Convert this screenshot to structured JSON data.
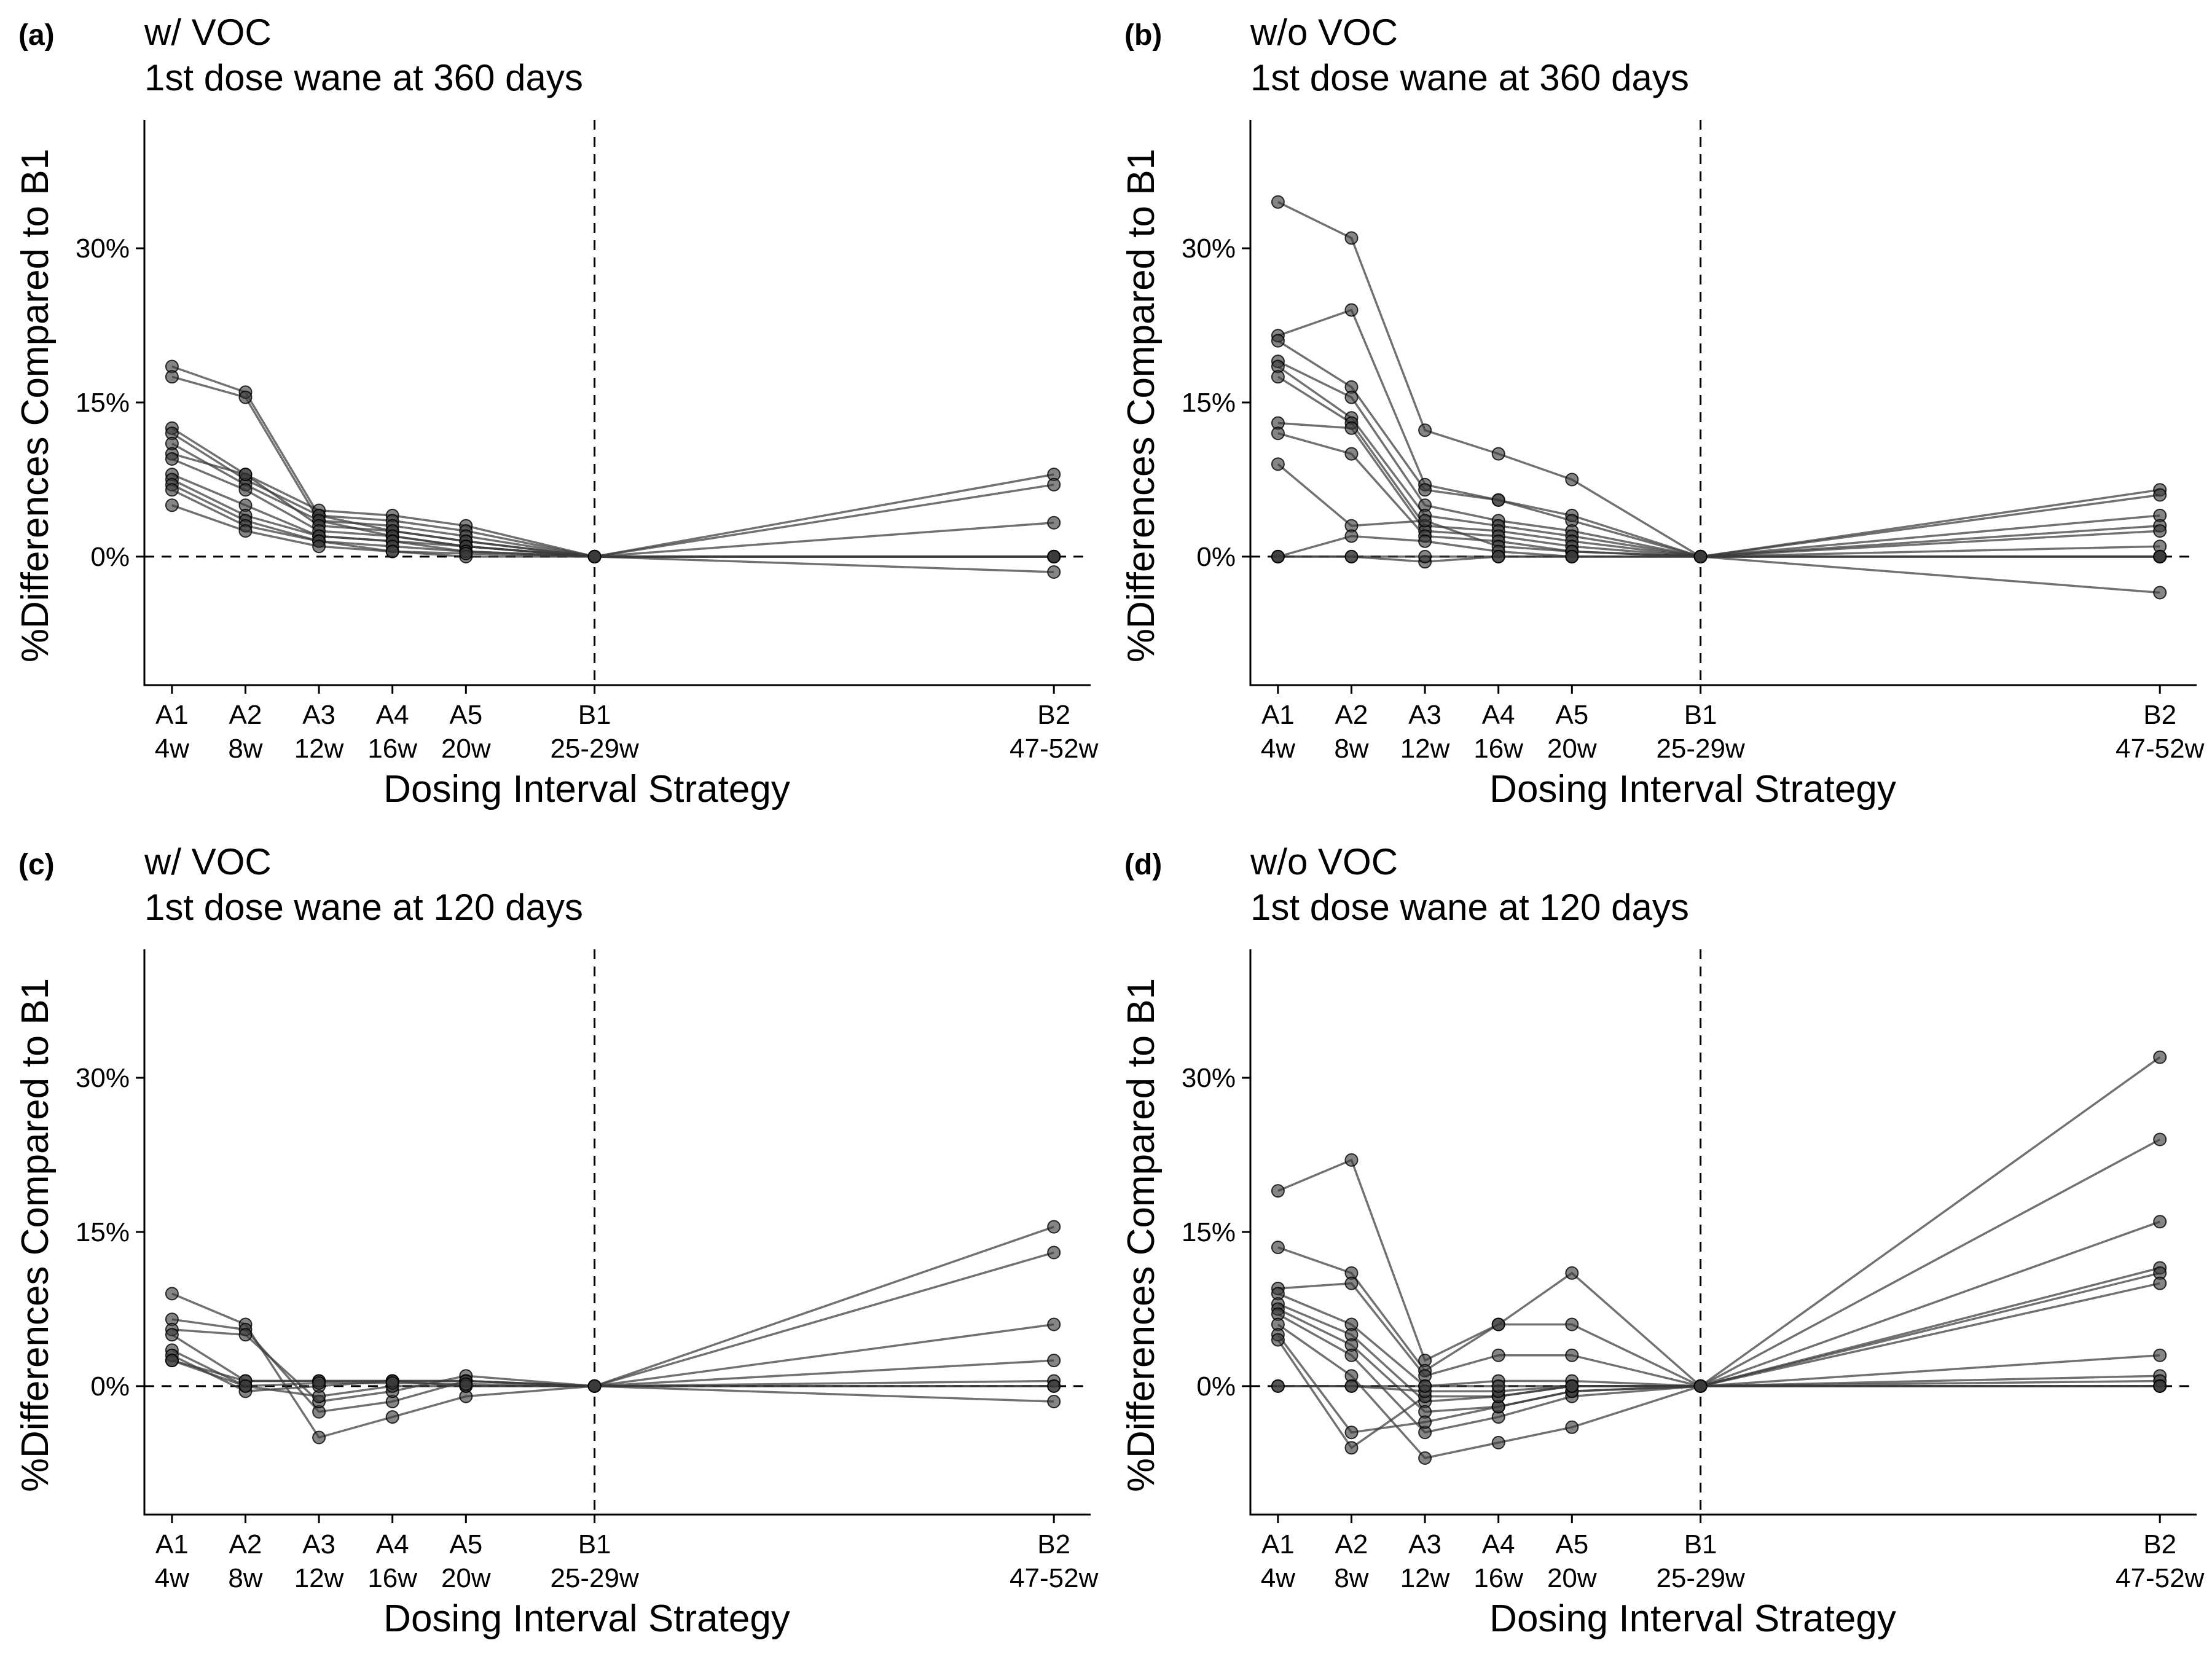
{
  "chart_data": [
    {
      "type": "line",
      "tag": "(a)",
      "title_line1": "w/ VOC",
      "title_line2": "1st dose wane at 360 days",
      "xlabel": "Dosing Interval Strategy",
      "ylabel": "%Differences Compared to B1",
      "categories": [
        {
          "code": "A1",
          "interval": "4w",
          "week": 4
        },
        {
          "code": "A2",
          "interval": "8w",
          "week": 8
        },
        {
          "code": "A3",
          "interval": "12w",
          "week": 12
        },
        {
          "code": "A4",
          "interval": "16w",
          "week": 16
        },
        {
          "code": "A5",
          "interval": "20w",
          "week": 20
        },
        {
          "code": "B1",
          "interval": "25-29w",
          "week": 27
        },
        {
          "code": "B2",
          "interval": "47-52w",
          "week": 52
        }
      ],
      "yticks": [
        "0%",
        "15%",
        "30%"
      ],
      "ytick_values": [
        0,
        15,
        30
      ],
      "ylim": [
        -12.5,
        42.5
      ],
      "series": [
        {
          "values": [
            18.5,
            16.0,
            4.0,
            2.5,
            1.5,
            0,
            0
          ]
        },
        {
          "values": [
            17.5,
            15.5,
            3.5,
            2.0,
            1.0,
            0,
            0
          ]
        },
        {
          "values": [
            12.5,
            8.0,
            4.5,
            4.0,
            3.0,
            0,
            0
          ]
        },
        {
          "values": [
            12.0,
            7.5,
            4.0,
            3.5,
            2.5,
            0,
            8.0
          ]
        },
        {
          "values": [
            11.0,
            7.0,
            3.5,
            3.0,
            2.0,
            0,
            7.0
          ]
        },
        {
          "values": [
            10.0,
            8.0,
            3.0,
            2.5,
            1.5,
            0,
            3.3
          ]
        },
        {
          "values": [
            9.5,
            6.5,
            2.5,
            2.0,
            1.0,
            0,
            0
          ]
        },
        {
          "values": [
            8.0,
            5.0,
            2.0,
            1.5,
            1.0,
            0,
            0
          ]
        },
        {
          "values": [
            7.5,
            4.0,
            2.0,
            1.5,
            0.5,
            0,
            -1.5
          ]
        },
        {
          "values": [
            7.0,
            3.5,
            1.5,
            1.0,
            0.5,
            0,
            0
          ]
        },
        {
          "values": [
            6.5,
            3.0,
            1.5,
            0.5,
            0.0,
            0,
            0
          ]
        },
        {
          "values": [
            5.0,
            2.5,
            1.0,
            0.5,
            0.3,
            0,
            0
          ]
        }
      ]
    },
    {
      "type": "line",
      "tag": "(b)",
      "title_line1": "w/o VOC",
      "title_line2": "1st dose wane at 360 days",
      "xlabel": "Dosing Interval Strategy",
      "ylabel": "%Differences Compared to B1",
      "categories": [
        {
          "code": "A1",
          "interval": "4w",
          "week": 4
        },
        {
          "code": "A2",
          "interval": "8w",
          "week": 8
        },
        {
          "code": "A3",
          "interval": "12w",
          "week": 12
        },
        {
          "code": "A4",
          "interval": "16w",
          "week": 16
        },
        {
          "code": "A5",
          "interval": "20w",
          "week": 20
        },
        {
          "code": "B1",
          "interval": "25-29w",
          "week": 27
        },
        {
          "code": "B2",
          "interval": "47-52w",
          "week": 52
        }
      ],
      "yticks": [
        "0%",
        "15%",
        "30%"
      ],
      "ytick_values": [
        0,
        15,
        30
      ],
      "ylim": [
        -12.5,
        42.5
      ],
      "series": [
        {
          "values": [
            34.5,
            31.0,
            12.3,
            10.0,
            7.5,
            0,
            6.5
          ]
        },
        {
          "values": [
            21.5,
            24.0,
            7.0,
            5.5,
            4.0,
            0,
            6.0
          ]
        },
        {
          "values": [
            21.0,
            16.5,
            6.5,
            5.5,
            3.5,
            0,
            4.0
          ]
        },
        {
          "values": [
            19.0,
            15.5,
            5.0,
            3.5,
            2.5,
            0,
            3.0
          ]
        },
        {
          "values": [
            18.5,
            13.5,
            4.0,
            3.0,
            2.0,
            0,
            2.5
          ]
        },
        {
          "values": [
            17.5,
            13.0,
            3.0,
            2.5,
            1.5,
            0,
            1.0
          ]
        },
        {
          "values": [
            13.0,
            12.5,
            2.5,
            2.0,
            1.0,
            0,
            0
          ]
        },
        {
          "values": [
            12.0,
            10.0,
            2.0,
            1.5,
            0.5,
            0,
            0
          ]
        },
        {
          "values": [
            9.0,
            3.0,
            3.5,
            1.0,
            0.5,
            0,
            -3.5
          ]
        },
        {
          "values": [
            0,
            2.0,
            1.5,
            0.5,
            0.0,
            0,
            0
          ]
        },
        {
          "values": [
            0,
            0,
            -0.5,
            0,
            0,
            0,
            0
          ]
        },
        {
          "values": [
            0,
            0,
            0,
            0,
            0,
            0,
            0
          ]
        }
      ]
    },
    {
      "type": "line",
      "tag": "(c)",
      "title_line1": "w/ VOC",
      "title_line2": "1st dose wane at 120 days",
      "xlabel": "Dosing Interval Strategy",
      "ylabel": "%Differences Compared to B1",
      "categories": [
        {
          "code": "A1",
          "interval": "4w",
          "week": 4
        },
        {
          "code": "A2",
          "interval": "8w",
          "week": 8
        },
        {
          "code": "A3",
          "interval": "12w",
          "week": 12
        },
        {
          "code": "A4",
          "interval": "16w",
          "week": 16
        },
        {
          "code": "A5",
          "interval": "20w",
          "week": 20
        },
        {
          "code": "B1",
          "interval": "25-29w",
          "week": 27
        },
        {
          "code": "B2",
          "interval": "47-52w",
          "week": 52
        }
      ],
      "yticks": [
        "0%",
        "15%",
        "30%"
      ],
      "ytick_values": [
        0,
        15,
        30
      ],
      "ylim": [
        -12.5,
        42.5
      ],
      "series": [
        {
          "values": [
            9.0,
            6.0,
            -5.0,
            -3.0,
            -1.0,
            0,
            15.5
          ]
        },
        {
          "values": [
            6.5,
            5.5,
            -2.5,
            -1.5,
            0.5,
            0,
            13.0
          ]
        },
        {
          "values": [
            5.5,
            5.0,
            -1.5,
            -0.5,
            1.0,
            0,
            6.0
          ]
        },
        {
          "values": [
            5.0,
            0.5,
            0.5,
            0.5,
            0.5,
            0,
            2.5
          ]
        },
        {
          "values": [
            3.5,
            0.0,
            -1.0,
            0.0,
            0.0,
            0,
            0.5
          ]
        },
        {
          "values": [
            3.0,
            -0.5,
            0.0,
            0.5,
            0.5,
            0,
            0
          ]
        },
        {
          "values": [
            2.5,
            0.5,
            0.5,
            0.5,
            0.0,
            0,
            -1.5
          ]
        },
        {
          "values": [
            2.5,
            0.0,
            0.3,
            0.3,
            0.2,
            0,
            0
          ]
        }
      ]
    },
    {
      "type": "line",
      "tag": "(d)",
      "title_line1": "w/o VOC",
      "title_line2": "1st dose wane at 120 days",
      "xlabel": "Dosing Interval Strategy",
      "ylabel": "%Differences Compared to B1",
      "categories": [
        {
          "code": "A1",
          "interval": "4w",
          "week": 4
        },
        {
          "code": "A2",
          "interval": "8w",
          "week": 8
        },
        {
          "code": "A3",
          "interval": "12w",
          "week": 12
        },
        {
          "code": "A4",
          "interval": "16w",
          "week": 16
        },
        {
          "code": "A5",
          "interval": "20w",
          "week": 20
        },
        {
          "code": "B1",
          "interval": "25-29w",
          "week": 27
        },
        {
          "code": "B2",
          "interval": "47-52w",
          "week": 52
        }
      ],
      "yticks": [
        "0%",
        "15%",
        "30%"
      ],
      "ytick_values": [
        0,
        15,
        30
      ],
      "ylim": [
        -12.5,
        42.5
      ],
      "series": [
        {
          "values": [
            19.0,
            22.0,
            2.5,
            6.0,
            11.0,
            0,
            32.0
          ]
        },
        {
          "values": [
            13.5,
            11.0,
            1.5,
            6.0,
            6.0,
            0,
            24.0
          ]
        },
        {
          "values": [
            9.5,
            10.0,
            1.0,
            3.0,
            3.0,
            0,
            16.0
          ]
        },
        {
          "values": [
            9.0,
            6.0,
            0.0,
            0.5,
            0.5,
            0,
            11.5
          ]
        },
        {
          "values": [
            8.0,
            5.0,
            -1.5,
            -1.0,
            0.0,
            0,
            11.0
          ]
        },
        {
          "values": [
            7.5,
            4.0,
            -2.5,
            -2.0,
            -0.5,
            0,
            10.0
          ]
        },
        {
          "values": [
            7.0,
            3.0,
            -4.5,
            -3.0,
            -1.0,
            0,
            3.0
          ]
        },
        {
          "values": [
            6.0,
            1.0,
            -7.0,
            -5.5,
            -4.0,
            0,
            1.0
          ]
        },
        {
          "values": [
            5.0,
            -4.5,
            -3.5,
            -2.0,
            -0.5,
            0,
            0.5
          ]
        },
        {
          "values": [
            4.5,
            -6.0,
            -1.0,
            -1.0,
            0.0,
            0,
            0
          ]
        },
        {
          "values": [
            0,
            0,
            -0.5,
            -0.5,
            0,
            0,
            0
          ]
        },
        {
          "values": [
            0,
            0,
            0,
            0,
            0,
            0,
            0
          ]
        }
      ]
    }
  ]
}
